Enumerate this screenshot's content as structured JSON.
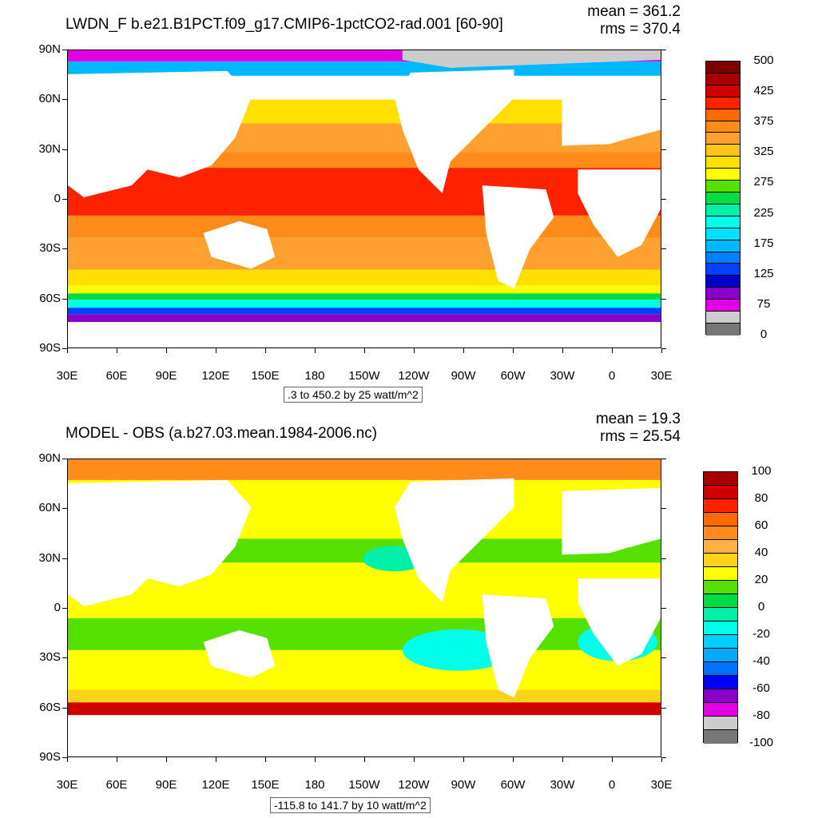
{
  "panels": [
    {
      "id": "top",
      "title": "LWDN_F b.e21.B1PCT.f09_g17.CMIP6-1pctCO2-rad.001 [60-90]",
      "mean": "mean = 361.2",
      "rms": "rms = 370.4",
      "range_label": ".3 to 450.2 by 25 watt/m^2",
      "lat_labels": [
        "90N",
        "60N",
        "30N",
        "0",
        "30S",
        "60S",
        "90S"
      ],
      "lon_labels": [
        "30E",
        "60E",
        "90E",
        "120E",
        "150E",
        "180",
        "150W",
        "120W",
        "90W",
        "60W",
        "30W",
        "0",
        "30E"
      ],
      "colorbar": {
        "labels": [
          "500",
          "425",
          "375",
          "325",
          "275",
          "225",
          "175",
          "125",
          "75",
          "0"
        ],
        "colors": [
          "#7d0000",
          "#a80000",
          "#d00000",
          "#ff2200",
          "#ff6a00",
          "#ff8c1a",
          "#ffa030",
          "#ffc41a",
          "#ffe000",
          "#ffff00",
          "#55e000",
          "#00dd44",
          "#00f0aa",
          "#00ffe8",
          "#00e0ff",
          "#00b8ff",
          "#0080ff",
          "#0040ff",
          "#0000c8",
          "#8a00c8",
          "#e400e4",
          "#cccccc",
          "#777777"
        ]
      }
    },
    {
      "id": "bottom",
      "title": "MODEL - OBS (a.b27.03.mean.1984-2006.nc)",
      "mean": "mean = 19.3",
      "rms": "rms = 25.54",
      "range_label": "-115.8 to 141.7 by 10 watt/m^2",
      "lat_labels": [
        "90N",
        "60N",
        "30N",
        "0",
        "30S",
        "60S",
        "90S"
      ],
      "lon_labels": [
        "30E",
        "60E",
        "90E",
        "120E",
        "150E",
        "180",
        "150W",
        "120W",
        "90W",
        "60W",
        "30W",
        "0",
        "30E"
      ],
      "colorbar": {
        "labels": [
          "100",
          "80",
          "60",
          "40",
          "20",
          "0",
          "-20",
          "-40",
          "-60",
          "-80",
          "-100"
        ],
        "colors": [
          "#a80000",
          "#d00000",
          "#ff2200",
          "#ff6a00",
          "#ff8c1a",
          "#ffb040",
          "#ffd21a",
          "#ffff00",
          "#55e000",
          "#00dd44",
          "#00f0aa",
          "#00ffe8",
          "#00d0ff",
          "#00a8ff",
          "#0070ff",
          "#0000ff",
          "#8a00c8",
          "#e400e4",
          "#cccccc",
          "#777777"
        ]
      }
    }
  ]
}
